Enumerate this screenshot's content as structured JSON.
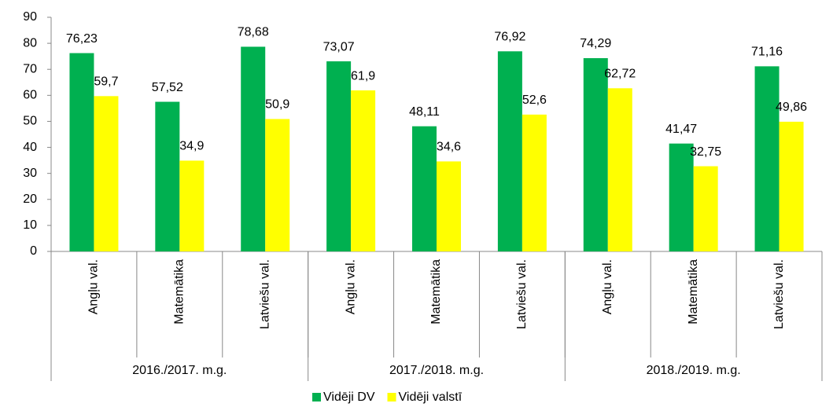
{
  "chart_data": {
    "type": "bar",
    "categories": [
      "Angļu val.",
      "Matemātika",
      "Latviešu val.",
      "Angļu val.",
      "Matemātika",
      "Latviešu val.",
      "Angļu val.",
      "Matemātika",
      "Latviešu val."
    ],
    "category_groups": [
      "2016./2017. m.g.",
      "2017./2018. m.g.",
      "2018./2019. m.g."
    ],
    "series": [
      {
        "name": "Vidēji DV",
        "color": "#00b050",
        "values": [
          76.23,
          57.52,
          78.68,
          73.07,
          48.11,
          76.92,
          74.29,
          41.47,
          71.16
        ],
        "value_labels": [
          "76,23",
          "57,52",
          "78,68",
          "73,07",
          "48,11",
          "76,92",
          "74,29",
          "41,47",
          "71,16"
        ]
      },
      {
        "name": "Vidēji valstī",
        "color": "#ffff00",
        "values": [
          59.7,
          34.9,
          50.9,
          61.9,
          34.6,
          52.6,
          62.72,
          32.75,
          49.86
        ],
        "value_labels": [
          "59,7",
          "34,9",
          "50,9",
          "61,9",
          "34,6",
          "52,6",
          "62,72",
          "32,75",
          "49,86"
        ]
      }
    ],
    "ylim": [
      0,
      90
    ],
    "yticks": [
      0,
      10,
      20,
      30,
      40,
      50,
      60,
      70,
      80,
      90
    ],
    "legend": "bottom"
  }
}
